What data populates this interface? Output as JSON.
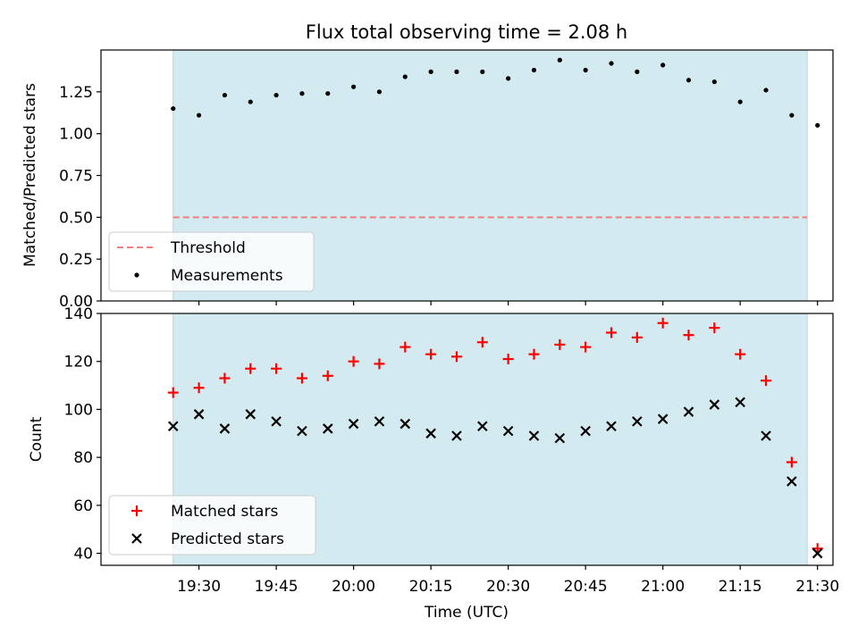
{
  "chart_data": [
    {
      "type": "scatter",
      "title": "Flux total observing time = 2.08 h",
      "xlabel": "",
      "ylabel": "Matched/Predicted stars",
      "ylim": [
        0,
        1.5
      ],
      "yticks": [
        "0.00",
        "0.25",
        "0.50",
        "0.75",
        "1.00",
        "1.25"
      ],
      "xlim": [
        "19:11",
        "21:33"
      ],
      "xticks": [
        "19:30",
        "19:45",
        "20:00",
        "20:15",
        "20:30",
        "20:45",
        "21:00",
        "21:15",
        "21:30"
      ],
      "shaded_region": {
        "start": "19:25",
        "end": "21:28",
        "color": "#d3eaf0"
      },
      "threshold": {
        "name": "Threshold",
        "value": 0.5,
        "color": "#f08080",
        "style": "dashed"
      },
      "series": [
        {
          "name": "Measurements",
          "marker": "dot",
          "color": "#000000",
          "x": [
            "19:25",
            "19:30",
            "19:35",
            "19:40",
            "19:45",
            "19:50",
            "19:55",
            "20:00",
            "20:05",
            "20:10",
            "20:15",
            "20:20",
            "20:25",
            "20:30",
            "20:35",
            "20:40",
            "20:45",
            "20:50",
            "20:55",
            "21:00",
            "21:05",
            "21:10",
            "21:15",
            "21:20",
            "21:25",
            "21:30"
          ],
          "values": [
            1.15,
            1.11,
            1.23,
            1.19,
            1.23,
            1.24,
            1.24,
            1.28,
            1.25,
            1.34,
            1.37,
            1.37,
            1.37,
            1.33,
            1.38,
            1.44,
            1.38,
            1.42,
            1.37,
            1.41,
            1.32,
            1.31,
            1.19,
            1.26,
            1.11,
            1.05
          ]
        }
      ],
      "legend": {
        "position": "lower-left",
        "entries": [
          "Threshold",
          "Measurements"
        ]
      }
    },
    {
      "type": "scatter",
      "title": "",
      "xlabel": "Time (UTC)",
      "ylabel": "Count",
      "ylim": [
        35,
        140
      ],
      "yticks": [
        "40",
        "60",
        "80",
        "100",
        "120",
        "140"
      ],
      "xlim": [
        "19:11",
        "21:33"
      ],
      "xticks": [
        "19:30",
        "19:45",
        "20:00",
        "20:15",
        "20:30",
        "20:45",
        "21:00",
        "21:15",
        "21:30"
      ],
      "shaded_region": {
        "start": "19:25",
        "end": "21:28",
        "color": "#d3eaf0"
      },
      "series": [
        {
          "name": "Matched stars",
          "marker": "plus",
          "color": "#ff0000",
          "x": [
            "19:25",
            "19:30",
            "19:35",
            "19:40",
            "19:45",
            "19:50",
            "19:55",
            "20:00",
            "20:05",
            "20:10",
            "20:15",
            "20:20",
            "20:25",
            "20:30",
            "20:35",
            "20:40",
            "20:45",
            "20:50",
            "20:55",
            "21:00",
            "21:05",
            "21:10",
            "21:15",
            "21:20",
            "21:25",
            "21:30"
          ],
          "values": [
            107,
            109,
            113,
            117,
            117,
            113,
            114,
            120,
            119,
            126,
            123,
            122,
            128,
            121,
            123,
            127,
            126,
            132,
            130,
            136,
            131,
            134,
            123,
            112,
            78,
            42
          ]
        },
        {
          "name": "Predicted stars",
          "marker": "x",
          "color": "#000000",
          "x": [
            "19:25",
            "19:30",
            "19:35",
            "19:40",
            "19:45",
            "19:50",
            "19:55",
            "20:00",
            "20:05",
            "20:10",
            "20:15",
            "20:20",
            "20:25",
            "20:30",
            "20:35",
            "20:40",
            "20:45",
            "20:50",
            "20:55",
            "21:00",
            "21:05",
            "21:10",
            "21:15",
            "21:20",
            "21:25",
            "21:30"
          ],
          "values": [
            93,
            98,
            92,
            98,
            95,
            91,
            92,
            94,
            95,
            94,
            90,
            89,
            93,
            91,
            89,
            88,
            91,
            93,
            95,
            96,
            99,
            102,
            103,
            89,
            70,
            40
          ]
        }
      ],
      "legend": {
        "position": "lower-left",
        "entries": [
          "Matched stars",
          "Predicted stars"
        ]
      }
    }
  ]
}
